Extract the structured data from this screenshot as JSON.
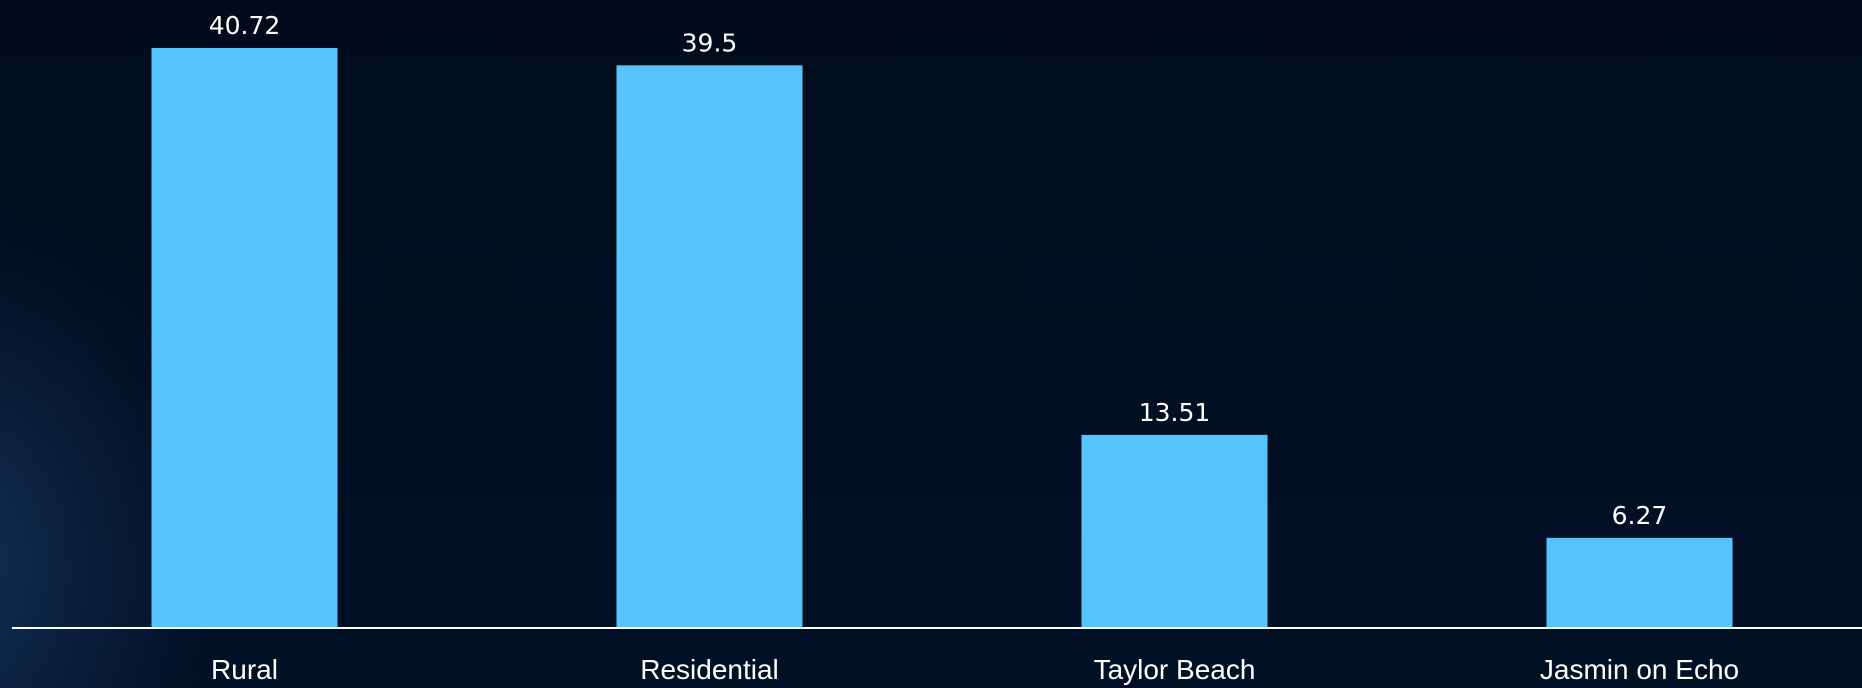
{
  "chart_data": {
    "type": "bar",
    "categories": [
      "Rural",
      "Residential",
      "Taylor Beach",
      "Jasmin on Echo"
    ],
    "values": [
      40.72,
      39.5,
      13.51,
      6.27
    ],
    "value_labels": [
      "40.72",
      "39.5",
      "13.51",
      "6.27"
    ],
    "title": "",
    "xlabel": "",
    "ylabel": "",
    "ylim": [
      0,
      40.72
    ],
    "grid": false,
    "legend": "none",
    "colors": {
      "bar": "#56c4ff",
      "axis": "#ffffff",
      "background": "#020d1f",
      "text": "#ffffff"
    }
  }
}
